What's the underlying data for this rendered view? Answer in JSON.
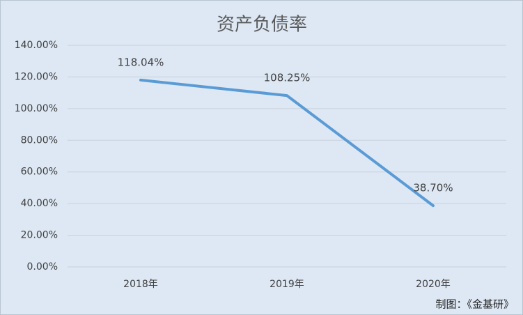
{
  "chart_data": {
    "type": "line",
    "title": "资产负债率",
    "categories": [
      "2018年",
      "2019年",
      "2020年"
    ],
    "series": [
      {
        "name": "资产负债率",
        "color": "#5b9bd5",
        "values": [
          118.04,
          108.25,
          38.7
        ],
        "value_labels": [
          "118.04%",
          "108.25%",
          "38.70%"
        ]
      }
    ],
    "ylim": [
      0,
      140
    ],
    "yticks": [
      {
        "value": 0,
        "label": "0.00%"
      },
      {
        "value": 20,
        "label": "20.00%"
      },
      {
        "value": 40,
        "label": "40.00%"
      },
      {
        "value": 60,
        "label": "60.00%"
      },
      {
        "value": 80,
        "label": "80.00%"
      },
      {
        "value": 100,
        "label": "100.00%"
      },
      {
        "value": 120,
        "label": "120.00%"
      },
      {
        "value": 140,
        "label": "140.00%"
      }
    ],
    "grid": true,
    "annotation": "制图：《金基研》"
  }
}
